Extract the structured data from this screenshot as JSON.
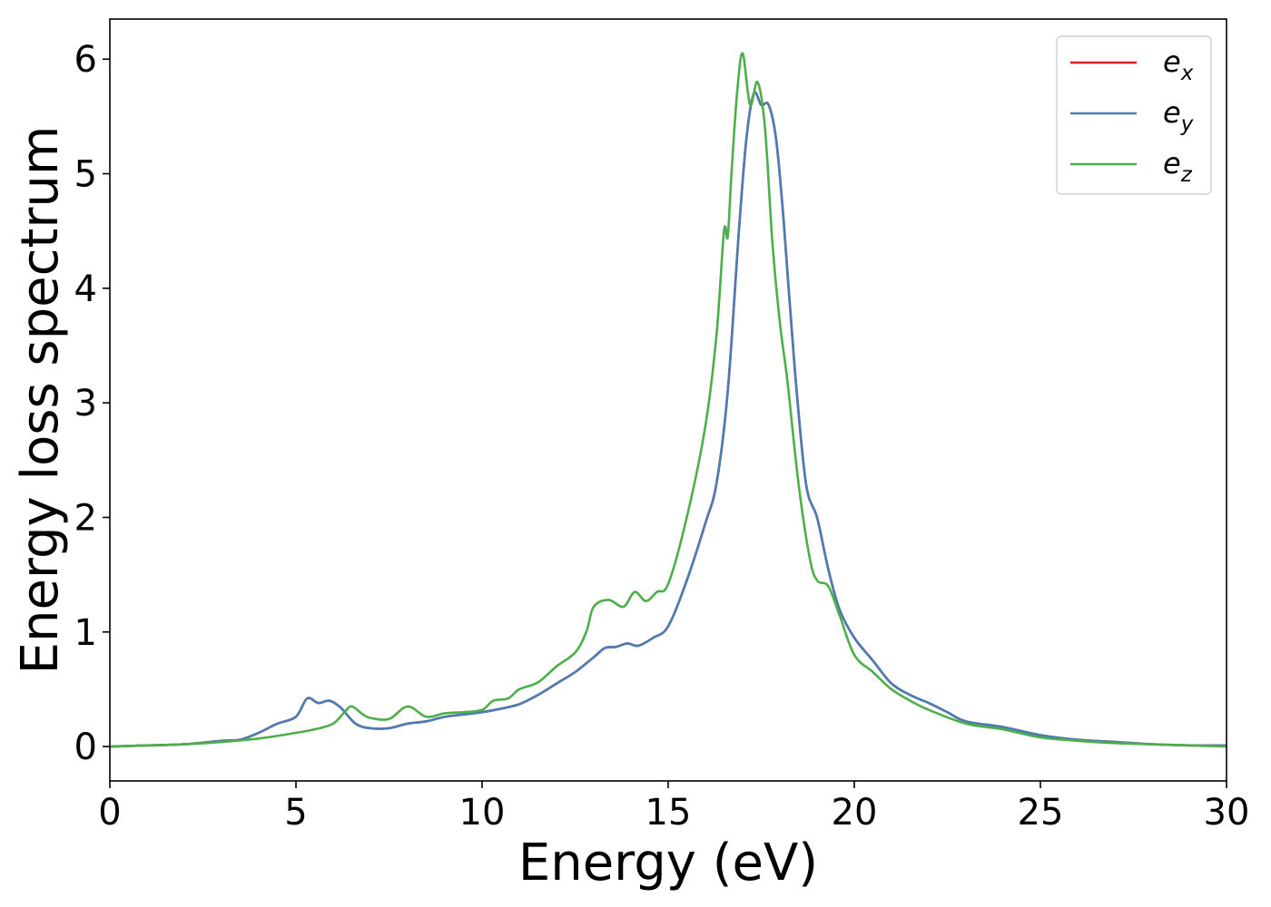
{
  "chart_data": {
    "type": "line",
    "title": "",
    "xlabel": "Energy (eV)",
    "ylabel": "Energy loss spectrum",
    "xlim": [
      0,
      30
    ],
    "ylim": [
      -0.3,
      6.35
    ],
    "xticks": [
      0,
      5,
      10,
      15,
      20,
      25,
      30
    ],
    "yticks": [
      0,
      1,
      2,
      3,
      4,
      5,
      6
    ],
    "grid": false,
    "legend_position": "top-right",
    "series": [
      {
        "name": "e_x",
        "legend_base": "e",
        "legend_sub": "x",
        "color": "#e41a1c",
        "x": [
          0,
          1,
          2,
          3,
          3.5,
          4,
          4.5,
          5,
          5.3,
          5.6,
          5.9,
          6.2,
          6.6,
          7,
          7.5,
          8,
          8.5,
          9,
          9.5,
          10,
          10.5,
          11,
          11.5,
          12,
          12.5,
          13,
          13.3,
          13.6,
          13.9,
          14.2,
          14.6,
          15,
          15.5,
          16,
          16.3,
          16.6,
          16.9,
          17.1,
          17.3,
          17.5,
          17.7,
          17.9,
          18.1,
          18.4,
          18.7,
          19,
          19.3,
          19.6,
          20,
          20.5,
          21,
          21.5,
          22,
          22.5,
          23,
          24,
          25,
          26,
          27,
          28,
          29,
          30
        ],
        "y": [
          0.0,
          0.01,
          0.02,
          0.05,
          0.06,
          0.12,
          0.2,
          0.26,
          0.42,
          0.38,
          0.4,
          0.34,
          0.2,
          0.16,
          0.16,
          0.2,
          0.22,
          0.26,
          0.28,
          0.3,
          0.33,
          0.37,
          0.45,
          0.55,
          0.65,
          0.78,
          0.86,
          0.87,
          0.9,
          0.88,
          0.95,
          1.05,
          1.45,
          1.95,
          2.3,
          3.1,
          4.5,
          5.3,
          5.7,
          5.6,
          5.6,
          5.3,
          4.6,
          3.3,
          2.3,
          2.0,
          1.55,
          1.2,
          0.95,
          0.75,
          0.55,
          0.45,
          0.38,
          0.3,
          0.22,
          0.17,
          0.1,
          0.06,
          0.04,
          0.02,
          0.01,
          0.01
        ]
      },
      {
        "name": "e_y",
        "legend_base": "e",
        "legend_sub": "y",
        "color": "#4a7db3",
        "x": [
          0,
          1,
          2,
          3,
          3.5,
          4,
          4.5,
          5,
          5.3,
          5.6,
          5.9,
          6.2,
          6.6,
          7,
          7.5,
          8,
          8.5,
          9,
          9.5,
          10,
          10.5,
          11,
          11.5,
          12,
          12.5,
          13,
          13.3,
          13.6,
          13.9,
          14.2,
          14.6,
          15,
          15.5,
          16,
          16.3,
          16.6,
          16.9,
          17.1,
          17.3,
          17.5,
          17.7,
          17.9,
          18.1,
          18.4,
          18.7,
          19,
          19.3,
          19.6,
          20,
          20.5,
          21,
          21.5,
          22,
          22.5,
          23,
          24,
          25,
          26,
          27,
          28,
          29,
          30
        ],
        "y": [
          0.0,
          0.01,
          0.02,
          0.05,
          0.06,
          0.12,
          0.2,
          0.26,
          0.42,
          0.38,
          0.4,
          0.34,
          0.2,
          0.16,
          0.16,
          0.2,
          0.22,
          0.26,
          0.28,
          0.3,
          0.33,
          0.37,
          0.45,
          0.55,
          0.65,
          0.78,
          0.86,
          0.87,
          0.9,
          0.88,
          0.95,
          1.05,
          1.45,
          1.95,
          2.3,
          3.1,
          4.5,
          5.3,
          5.7,
          5.6,
          5.6,
          5.3,
          4.6,
          3.3,
          2.3,
          2.0,
          1.55,
          1.2,
          0.95,
          0.75,
          0.55,
          0.45,
          0.38,
          0.3,
          0.22,
          0.17,
          0.1,
          0.06,
          0.04,
          0.02,
          0.01,
          0.01
        ]
      },
      {
        "name": "e_z",
        "legend_base": "e",
        "legend_sub": "z",
        "color": "#4daf4a",
        "x": [
          0,
          1,
          2,
          3,
          4,
          5,
          5.5,
          6,
          6.3,
          6.5,
          6.8,
          7,
          7.5,
          8,
          8.5,
          9,
          9.5,
          10,
          10.3,
          10.7,
          11,
          11.5,
          12,
          12.5,
          12.8,
          13,
          13.4,
          13.8,
          14.1,
          14.4,
          14.7,
          15,
          15.5,
          16,
          16.3,
          16.5,
          16.6,
          16.7,
          16.85,
          17,
          17.2,
          17.4,
          17.6,
          17.8,
          18,
          18.2,
          18.5,
          18.8,
          19,
          19.3,
          19.6,
          20,
          20.5,
          21,
          21.5,
          22,
          23,
          24,
          25,
          26,
          27,
          28,
          29,
          30
        ],
        "y": [
          0.0,
          0.01,
          0.02,
          0.04,
          0.07,
          0.12,
          0.15,
          0.2,
          0.3,
          0.35,
          0.28,
          0.25,
          0.24,
          0.35,
          0.26,
          0.29,
          0.3,
          0.32,
          0.4,
          0.42,
          0.5,
          0.56,
          0.7,
          0.82,
          1.0,
          1.22,
          1.28,
          1.22,
          1.35,
          1.27,
          1.35,
          1.42,
          2.0,
          2.8,
          3.6,
          4.5,
          4.45,
          5.0,
          5.7,
          6.05,
          5.6,
          5.8,
          5.4,
          4.4,
          3.7,
          3.2,
          2.3,
          1.65,
          1.45,
          1.4,
          1.15,
          0.8,
          0.65,
          0.5,
          0.4,
          0.32,
          0.2,
          0.15,
          0.08,
          0.05,
          0.03,
          0.02,
          0.01,
          0.0
        ]
      }
    ]
  }
}
